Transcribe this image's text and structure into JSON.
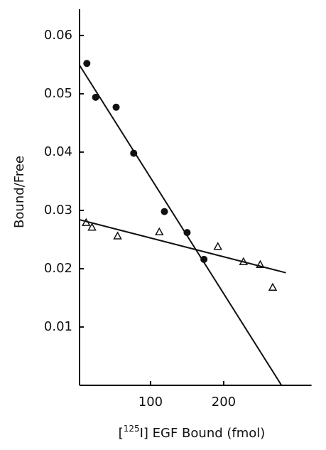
{
  "chart_data": {
    "type": "scatter",
    "y_label": "Bound/Free",
    "x_label": {
      "prefix": "[",
      "superscript": "125",
      "text": "I] EGF Bound (fmol)"
    },
    "xlim": [
      3,
      320
    ],
    "xticks": [
      100,
      200
    ],
    "ylim": [
      0,
      0.0645
    ],
    "yticks": [
      0.01,
      0.02,
      0.03,
      0.04,
      0.05,
      0.06
    ],
    "series": [
      {
        "marker": "filled-circle",
        "color": "#111111",
        "x": [
          13,
          25,
          53,
          77,
          119,
          150,
          173
        ],
        "values": [
          0.0552,
          0.0494,
          0.0477,
          0.0398,
          0.0298,
          0.0262,
          0.0216
        ]
      },
      {
        "marker": "open-triangle",
        "color": "#111111",
        "x": [
          12,
          20,
          55,
          112,
          192,
          227,
          250,
          267
        ],
        "values": [
          0.0279,
          0.0271,
          0.0256,
          0.0263,
          0.0238,
          0.0212,
          0.0207,
          0.0168
        ]
      },
      {
        "marker": "line",
        "color": "#111111",
        "x": [
          3,
          279
        ],
        "values": [
          0.0549,
          0
        ]
      },
      {
        "marker": "line",
        "color": "#111111",
        "x": [
          3,
          285
        ],
        "values": [
          0.0284,
          0.0193
        ]
      }
    ]
  }
}
